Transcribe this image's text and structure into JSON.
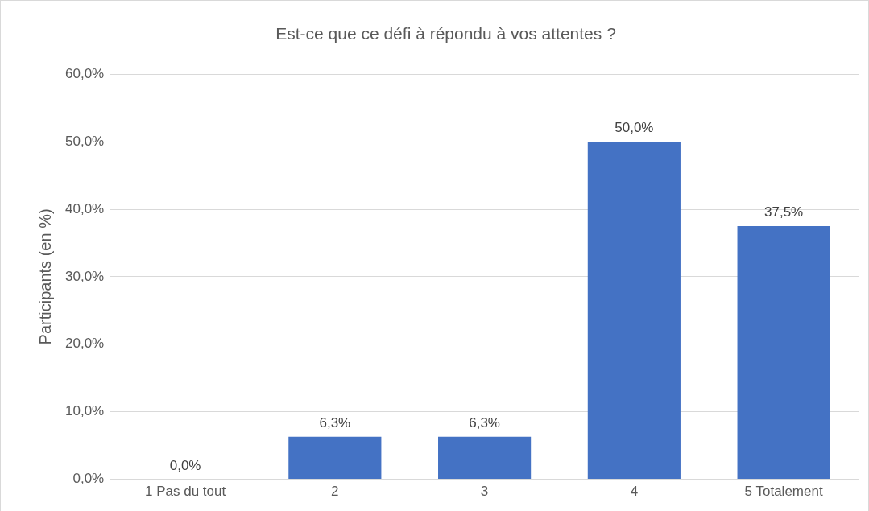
{
  "chart_data": {
    "type": "bar",
    "title": "Est-ce que ce défi à répondu à vos attentes ?",
    "ylabel": "Participants (en %)",
    "categories": [
      "1 Pas du tout",
      "2",
      "3",
      "4",
      "5 Totalement"
    ],
    "values": [
      0,
      6.3,
      6.3,
      50,
      37.5
    ],
    "value_labels": [
      "0,0%",
      "6,3%",
      "6,3%",
      "50,0%",
      "37,5%"
    ],
    "color": "#4472c4",
    "ylim": [
      0,
      60
    ],
    "yticks": [
      {
        "value": 0,
        "label": "0,0%"
      },
      {
        "value": 10,
        "label": "10,0%"
      },
      {
        "value": 20,
        "label": "20,0%"
      },
      {
        "value": 30,
        "label": "30,0%"
      },
      {
        "value": 40,
        "label": "40,0%"
      },
      {
        "value": 50,
        "label": "50,0%"
      },
      {
        "value": 60,
        "label": "60,0%"
      }
    ],
    "grid": "y",
    "legend": false
  }
}
